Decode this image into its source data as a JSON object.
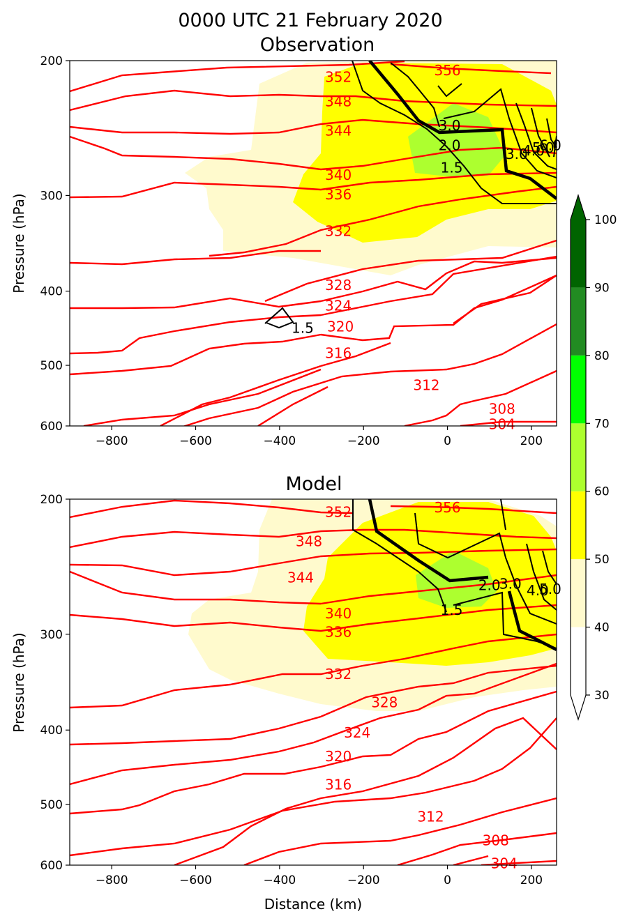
{
  "figure_title_line1": "0000 UTC 21 February 2020",
  "colors": {
    "theta": "#ff0000",
    "pv": "#000000",
    "rh_bins": [
      "#fffacd",
      "#ffff00",
      "#adff2f",
      "#00ff00",
      "#228b22",
      "#006400"
    ]
  },
  "colorbar": {
    "ticks": [
      "30",
      "40",
      "50",
      "60",
      "70",
      "80",
      "90",
      "100"
    ],
    "extend": "both"
  },
  "chart_data": [
    {
      "type": "contour",
      "title": "Observation",
      "xlabel": "",
      "ylabel": "Pressure (hPa)",
      "xlim": [
        -900,
        260
      ],
      "ylim": [
        600,
        200
      ],
      "y_scale": "log",
      "xticks": [
        "−800",
        "−600",
        "−400",
        "−200",
        "0",
        "200"
      ],
      "yticks": [
        "200",
        "300",
        "400",
        "500",
        "600"
      ],
      "theta_labels": [
        {
          "text": "352",
          "x": -260,
          "p": 210
        },
        {
          "text": "356",
          "x": 0,
          "p": 206
        },
        {
          "text": "348",
          "x": -260,
          "p": 226
        },
        {
          "text": "344",
          "x": -260,
          "p": 247
        },
        {
          "text": "340",
          "x": -260,
          "p": 282
        },
        {
          "text": "336",
          "x": -260,
          "p": 299
        },
        {
          "text": "332",
          "x": -260,
          "p": 334
        },
        {
          "text": "328",
          "x": -260,
          "p": 393
        },
        {
          "text": "324",
          "x": -260,
          "p": 418
        },
        {
          "text": "320",
          "x": -255,
          "p": 445
        },
        {
          "text": "316",
          "x": -260,
          "p": 482
        },
        {
          "text": "312",
          "x": -50,
          "p": 531
        },
        {
          "text": "308",
          "x": 130,
          "p": 570
        },
        {
          "text": "304",
          "x": 130,
          "p": 597
        }
      ],
      "pv_labels": [
        {
          "text": "3.0",
          "x": 5,
          "p": 243
        },
        {
          "text": "2.0",
          "x": 5,
          "p": 258
        },
        {
          "text": "1.5",
          "x": 10,
          "p": 276
        },
        {
          "text": "1.5",
          "x": -345,
          "p": 447
        },
        {
          "text": "3.0",
          "x": 165,
          "p": 265
        },
        {
          "text": "4.0",
          "x": 205,
          "p": 262
        },
        {
          "text": "5.0",
          "x": 228,
          "p": 260
        },
        {
          "text": "6.0",
          "x": 245,
          "p": 258
        }
      ]
    },
    {
      "type": "contour",
      "title": "Model",
      "xlabel": "Distance (km)",
      "ylabel": "Pressure (hPa)",
      "xlim": [
        -900,
        260
      ],
      "ylim": [
        600,
        200
      ],
      "y_scale": "log",
      "xticks": [
        "−800",
        "−600",
        "−400",
        "−200",
        "0",
        "200"
      ],
      "yticks": [
        "200",
        "300",
        "400",
        "500",
        "600"
      ],
      "theta_labels": [
        {
          "text": "352",
          "x": -260,
          "p": 208
        },
        {
          "text": "356",
          "x": 0,
          "p": 205
        },
        {
          "text": "348",
          "x": -330,
          "p": 227
        },
        {
          "text": "344",
          "x": -350,
          "p": 253
        },
        {
          "text": "340",
          "x": -260,
          "p": 282
        },
        {
          "text": "336",
          "x": -260,
          "p": 298
        },
        {
          "text": "332",
          "x": -260,
          "p": 338
        },
        {
          "text": "328",
          "x": -150,
          "p": 368
        },
        {
          "text": "324",
          "x": -215,
          "p": 403
        },
        {
          "text": "320",
          "x": -260,
          "p": 433
        },
        {
          "text": "316",
          "x": -260,
          "p": 471
        },
        {
          "text": "312",
          "x": -40,
          "p": 519
        },
        {
          "text": "308",
          "x": 115,
          "p": 557
        },
        {
          "text": "304",
          "x": 135,
          "p": 597
        }
      ],
      "pv_labels": [
        {
          "text": "1.5",
          "x": 10,
          "p": 279
        },
        {
          "text": "2.0",
          "x": 100,
          "p": 259
        },
        {
          "text": "3.0",
          "x": 150,
          "p": 258
        },
        {
          "text": "4.0",
          "x": 215,
          "p": 263
        },
        {
          "text": "5.0",
          "x": 245,
          "p": 262
        }
      ]
    }
  ]
}
